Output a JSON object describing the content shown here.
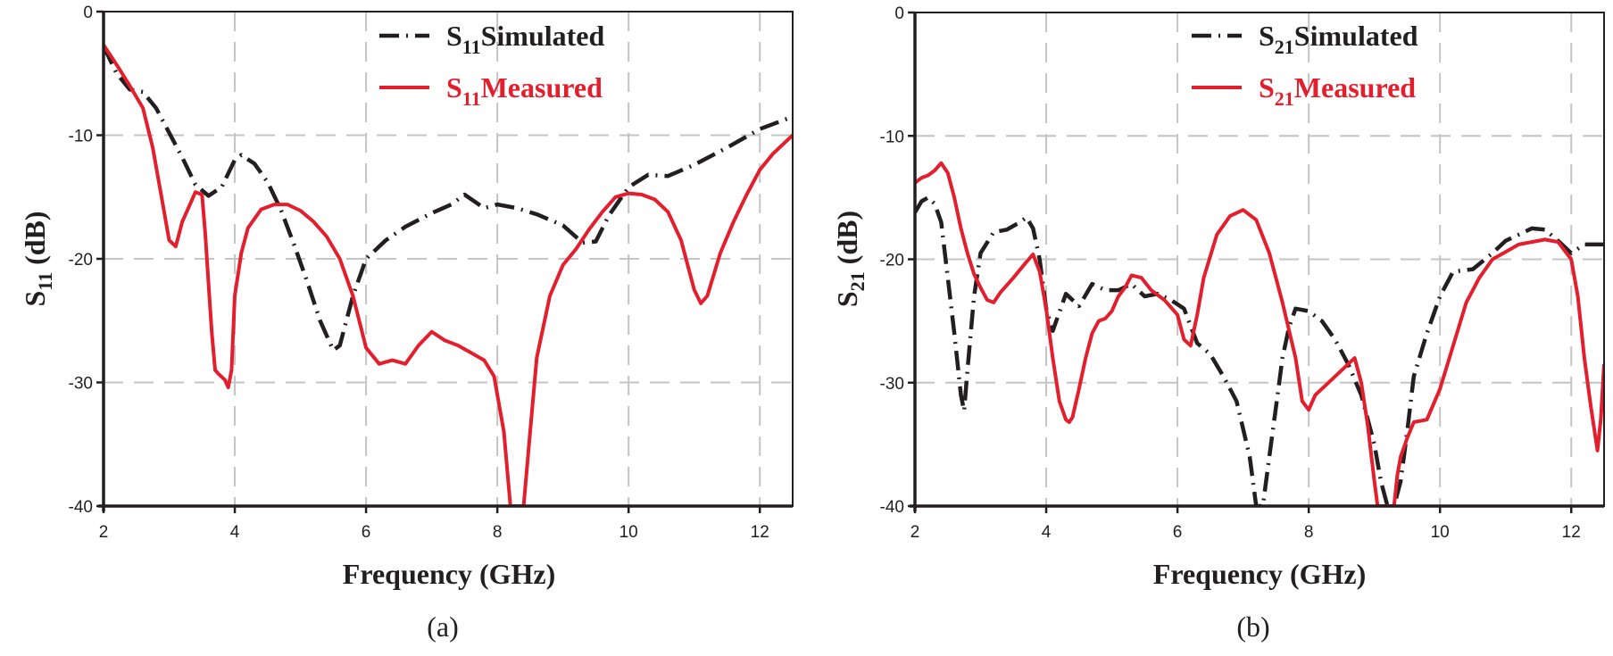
{
  "chart_data": [
    {
      "type": "line",
      "panel_label": "(a)",
      "title": "",
      "xlabel": "Frequency (GHz)",
      "ylabel": "S11 (dB)",
      "ylabel_main": "S",
      "ylabel_sub": "11",
      "ylabel_unit": " (dB)",
      "xlim": [
        2,
        12.5
      ],
      "ylim": [
        -40,
        0
      ],
      "xticks": [
        2,
        4,
        6,
        8,
        10,
        12
      ],
      "yticks": [
        0,
        -10,
        -20,
        -30,
        -40
      ],
      "xtick_labels": [
        "2",
        "4",
        "6",
        "8",
        "10",
        "12"
      ],
      "ytick_labels": [
        "0",
        "-10",
        "-20",
        "-30",
        "-40"
      ],
      "grid": true,
      "legend_position": "top-right",
      "series": [
        {
          "name": "S11 Simulated",
          "label_main": "S",
          "label_sub": "11",
          "label_rest": "Simulated",
          "style": "dash-dot",
          "color": "#231f20",
          "x": [
            2.0,
            2.2,
            2.4,
            2.6,
            2.8,
            3.0,
            3.2,
            3.4,
            3.6,
            3.8,
            4.0,
            4.1,
            4.3,
            4.5,
            4.7,
            4.9,
            5.1,
            5.3,
            5.5,
            5.6,
            5.8,
            6.0,
            6.3,
            6.6,
            7.0,
            7.3,
            7.5,
            7.8,
            8.0,
            8.3,
            8.6,
            9.0,
            9.3,
            9.5,
            9.7,
            10.0,
            10.3,
            10.6,
            11.0,
            11.5,
            12.0,
            12.5
          ],
          "y": [
            -2.8,
            -5.0,
            -6.3,
            -6.5,
            -7.8,
            -9.8,
            -11.8,
            -14.0,
            -14.9,
            -14.2,
            -12.0,
            -11.6,
            -12.3,
            -13.8,
            -16.0,
            -18.8,
            -21.8,
            -25.0,
            -27.4,
            -27.0,
            -23.0,
            -20.0,
            -18.5,
            -17.4,
            -16.3,
            -15.6,
            -14.8,
            -15.9,
            -15.6,
            -15.9,
            -16.4,
            -17.3,
            -18.7,
            -18.6,
            -16.5,
            -14.2,
            -13.2,
            -13.3,
            -12.4,
            -11.0,
            -9.5,
            -8.5
          ]
        },
        {
          "name": "S11 Measured",
          "label_main": "S",
          "label_sub": "11",
          "label_rest": "Measured",
          "style": "solid",
          "color": "#e31e2d",
          "x": [
            2.0,
            2.2,
            2.4,
            2.6,
            2.75,
            2.9,
            3.0,
            3.1,
            3.2,
            3.3,
            3.4,
            3.5,
            3.55,
            3.6,
            3.65,
            3.7,
            3.75,
            3.85,
            3.9,
            3.95,
            4.0,
            4.1,
            4.2,
            4.4,
            4.6,
            4.8,
            5.0,
            5.2,
            5.4,
            5.6,
            5.8,
            6.0,
            6.2,
            6.4,
            6.6,
            6.8,
            7.0,
            7.2,
            7.4,
            7.6,
            7.8,
            7.95,
            8.1,
            8.2,
            8.4,
            8.5,
            8.6,
            8.8,
            9.0,
            9.2,
            9.4,
            9.6,
            9.8,
            10.0,
            10.2,
            10.4,
            10.6,
            10.8,
            11.0,
            11.1,
            11.2,
            11.4,
            11.6,
            11.8,
            12.0,
            12.2,
            12.5
          ],
          "y": [
            -2.7,
            -4.3,
            -6.0,
            -7.8,
            -11.0,
            -15.5,
            -18.5,
            -19.0,
            -17.0,
            -15.8,
            -14.6,
            -14.8,
            -18.0,
            -22.0,
            -26.0,
            -29.0,
            -29.3,
            -29.8,
            -30.4,
            -29.0,
            -23.0,
            -19.5,
            -17.5,
            -16.0,
            -15.6,
            -15.6,
            -16.1,
            -17.0,
            -18.2,
            -20.0,
            -23.0,
            -27.2,
            -28.5,
            -28.2,
            -28.5,
            -27.0,
            -25.9,
            -26.6,
            -27.0,
            -27.6,
            -28.2,
            -29.5,
            -34.0,
            -40.0,
            -40.0,
            -34.0,
            -28.0,
            -23.0,
            -20.5,
            -19.2,
            -17.6,
            -16.2,
            -15.0,
            -14.7,
            -14.8,
            -15.2,
            -16.2,
            -18.5,
            -22.5,
            -23.6,
            -23.0,
            -19.5,
            -17.0,
            -14.8,
            -12.8,
            -11.5,
            -10.0
          ]
        }
      ]
    },
    {
      "type": "line",
      "panel_label": "(b)",
      "title": "",
      "xlabel": "Frequency (GHz)",
      "ylabel": "S21 (dB)",
      "ylabel_main": "S",
      "ylabel_sub": "21",
      "ylabel_unit": " (dB)",
      "xlim": [
        2,
        12.5
      ],
      "ylim": [
        -40,
        0
      ],
      "xticks": [
        2,
        4,
        6,
        8,
        10,
        12
      ],
      "yticks": [
        0,
        -10,
        -20,
        -30,
        -40
      ],
      "xtick_labels": [
        "2",
        "4",
        "6",
        "8",
        "10",
        "12"
      ],
      "ytick_labels": [
        "0",
        "-10",
        "-20",
        "-30",
        "-40"
      ],
      "grid": true,
      "legend_position": "top-right",
      "series": [
        {
          "name": "S21 Simulated",
          "label_main": "S",
          "label_sub": "21",
          "label_rest": "Simulated",
          "style": "dash-dot",
          "color": "#231f20",
          "x": [
            2.0,
            2.1,
            2.2,
            2.3,
            2.4,
            2.5,
            2.6,
            2.7,
            2.75,
            2.8,
            2.9,
            3.0,
            3.2,
            3.4,
            3.6,
            3.7,
            3.8,
            3.9,
            4.0,
            4.1,
            4.3,
            4.5,
            4.7,
            4.9,
            5.1,
            5.3,
            5.5,
            5.7,
            5.9,
            6.1,
            6.3,
            6.5,
            6.7,
            6.9,
            7.1,
            7.2,
            7.25,
            7.3,
            7.4,
            7.5,
            7.6,
            7.7,
            7.8,
            8.0,
            8.2,
            8.4,
            8.6,
            8.8,
            9.0,
            9.1,
            9.2,
            9.3,
            9.4,
            9.5,
            9.6,
            9.8,
            10.0,
            10.2,
            10.5,
            10.8,
            11.0,
            11.2,
            11.4,
            11.6,
            11.8,
            12.0,
            12.2,
            12.5
          ],
          "y": [
            -16.2,
            -15.3,
            -15.0,
            -15.5,
            -17.0,
            -21.5,
            -26.0,
            -31.0,
            -32.3,
            -29.0,
            -23.0,
            -19.5,
            -17.8,
            -17.6,
            -17.0,
            -16.6,
            -17.5,
            -20.0,
            -24.0,
            -25.8,
            -22.8,
            -23.8,
            -22.0,
            -22.5,
            -22.5,
            -22.0,
            -23.0,
            -22.8,
            -23.3,
            -24.0,
            -26.8,
            -27.7,
            -29.5,
            -31.5,
            -36.0,
            -40.0,
            -40.0,
            -40.0,
            -36.0,
            -32.0,
            -28.0,
            -25.5,
            -24.0,
            -24.2,
            -25.0,
            -26.5,
            -28.5,
            -31.0,
            -35.0,
            -38.0,
            -40.0,
            -40.0,
            -38.0,
            -34.0,
            -29.5,
            -26.0,
            -23.0,
            -21.0,
            -20.8,
            -19.5,
            -18.5,
            -18.0,
            -17.5,
            -17.6,
            -18.5,
            -19.5,
            -18.8,
            -18.8
          ]
        },
        {
          "name": "S21 Measured",
          "label_main": "S",
          "label_sub": "21",
          "label_rest": "Measured",
          "style": "solid",
          "color": "#e31e2d",
          "x": [
            2.0,
            2.1,
            2.2,
            2.3,
            2.4,
            2.5,
            2.6,
            2.7,
            2.8,
            2.9,
            3.0,
            3.1,
            3.2,
            3.3,
            3.5,
            3.7,
            3.8,
            3.9,
            4.0,
            4.1,
            4.2,
            4.3,
            4.35,
            4.4,
            4.5,
            4.6,
            4.7,
            4.8,
            4.9,
            5.0,
            5.1,
            5.2,
            5.3,
            5.45,
            5.6,
            5.8,
            6.0,
            6.1,
            6.2,
            6.3,
            6.4,
            6.6,
            6.8,
            7.0,
            7.2,
            7.4,
            7.6,
            7.8,
            7.9,
            8.0,
            8.1,
            8.3,
            8.5,
            8.7,
            8.8,
            8.9,
            9.0,
            9.05,
            9.1,
            9.2,
            9.3,
            9.35,
            9.4,
            9.5,
            9.6,
            9.8,
            10.0,
            10.2,
            10.4,
            10.6,
            10.8,
            11.0,
            11.2,
            11.4,
            11.6,
            11.8,
            12.0,
            12.1,
            12.2,
            12.3,
            12.4,
            12.45,
            12.5
          ],
          "y": [
            -13.8,
            -13.4,
            -13.2,
            -12.8,
            -12.2,
            -13.0,
            -15.0,
            -17.5,
            -19.5,
            -21.2,
            -22.3,
            -23.3,
            -23.5,
            -22.7,
            -21.5,
            -20.2,
            -19.6,
            -21.0,
            -24.0,
            -28.0,
            -31.5,
            -33.0,
            -33.2,
            -32.8,
            -30.5,
            -28.0,
            -26.0,
            -25.0,
            -24.8,
            -24.2,
            -23.0,
            -22.3,
            -21.3,
            -21.5,
            -22.5,
            -23.3,
            -24.5,
            -26.5,
            -27.0,
            -24.5,
            -21.5,
            -18.0,
            -16.5,
            -16.0,
            -16.8,
            -19.5,
            -23.5,
            -28.0,
            -31.5,
            -32.2,
            -31.0,
            -30.0,
            -29.0,
            -28.0,
            -30.0,
            -33.5,
            -38.0,
            -40.0,
            -40.0,
            -40.0,
            -40.0,
            -37.5,
            -36.0,
            -34.5,
            -33.2,
            -33.0,
            -30.5,
            -27.0,
            -23.5,
            -21.5,
            -20.0,
            -19.4,
            -18.8,
            -18.6,
            -18.4,
            -18.6,
            -20.0,
            -23.0,
            -28.0,
            -32.0,
            -35.5,
            -33.0,
            -28.5
          ]
        }
      ]
    }
  ]
}
